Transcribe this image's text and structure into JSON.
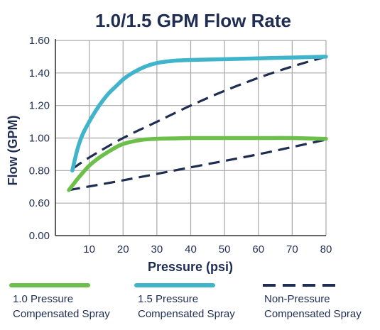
{
  "colors": {
    "green": "#6cc04a",
    "blue": "#3fb4cb",
    "navy": "#1f2d52",
    "grid": "#a8a8a8"
  },
  "chart_data": {
    "type": "line",
    "title": "1.0/1.5 GPM Flow Rate",
    "xlabel": "Pressure (psi)",
    "ylabel": "Flow (GPM)",
    "xlim": [
      0,
      80
    ],
    "x_ticks": [
      10,
      20,
      30,
      40,
      50,
      60,
      70,
      80
    ],
    "y_ticks": [
      {
        "value": 0.0,
        "label": "0.00"
      },
      {
        "value": 0.6,
        "label": "0.60"
      },
      {
        "value": 0.8,
        "label": "0.80"
      },
      {
        "value": 1.0,
        "label": "1.00"
      },
      {
        "value": 1.2,
        "label": "1.20"
      },
      {
        "value": 1.4,
        "label": "1.40"
      },
      {
        "value": 1.6,
        "label": "1.60"
      }
    ],
    "y_axis_note": "broken axis: 0.00 shown below 0.60",
    "grid": true,
    "legend_position": "bottom",
    "series": [
      {
        "name": "1.0 Pressure Compensated Spray",
        "legend_lines": [
          "1.0 Pressure",
          "Compensated Spray"
        ],
        "color": "#6cc04a",
        "style": "solid",
        "x": [
          4,
          7,
          10,
          13,
          16,
          19,
          22,
          26,
          30,
          35,
          40,
          50,
          60,
          70,
          80
        ],
        "y": [
          0.68,
          0.76,
          0.83,
          0.88,
          0.92,
          0.955,
          0.975,
          0.99,
          0.995,
          0.998,
          1.0,
          1.0,
          1.0,
          1.0,
          0.995
        ]
      },
      {
        "name": "1.5 Pressure Compensated Spray",
        "legend_lines": [
          "1.5 Pressure",
          "Compensated Spray"
        ],
        "color": "#3fb4cb",
        "style": "solid",
        "x": [
          5,
          6.5,
          8,
          10,
          12,
          14,
          16,
          18,
          20,
          22,
          25,
          28,
          31,
          35,
          40,
          50,
          60,
          70,
          80
        ],
        "y": [
          0.8,
          0.93,
          1.02,
          1.1,
          1.17,
          1.23,
          1.28,
          1.32,
          1.36,
          1.39,
          1.425,
          1.45,
          1.465,
          1.475,
          1.48,
          1.485,
          1.49,
          1.495,
          1.5
        ]
      },
      {
        "name": "Non-Pressure Compensated Spray (upper)",
        "color": "#1f2d52",
        "style": "dashed",
        "x": [
          5,
          10,
          20,
          30,
          40,
          50,
          60,
          70,
          80
        ],
        "y": [
          0.81,
          0.88,
          1.0,
          1.1,
          1.2,
          1.29,
          1.37,
          1.44,
          1.5
        ]
      },
      {
        "name": "Non-Pressure Compensated Spray (lower)",
        "color": "#1f2d52",
        "style": "dashed",
        "x": [
          4,
          20,
          40,
          60,
          80
        ],
        "y": [
          0.68,
          0.74,
          0.82,
          0.9,
          0.99
        ]
      }
    ],
    "legend": [
      {
        "color": "#6cc04a",
        "style": "solid",
        "lines": [
          "1.0 Pressure",
          "Compensated Spray"
        ]
      },
      {
        "color": "#3fb4cb",
        "style": "solid",
        "lines": [
          "1.5 Pressure",
          "Compensated Spray"
        ]
      },
      {
        "color": "#1f2d52",
        "style": "dashed",
        "lines": [
          "Non-Pressure",
          "Compensated Spray"
        ]
      }
    ]
  }
}
